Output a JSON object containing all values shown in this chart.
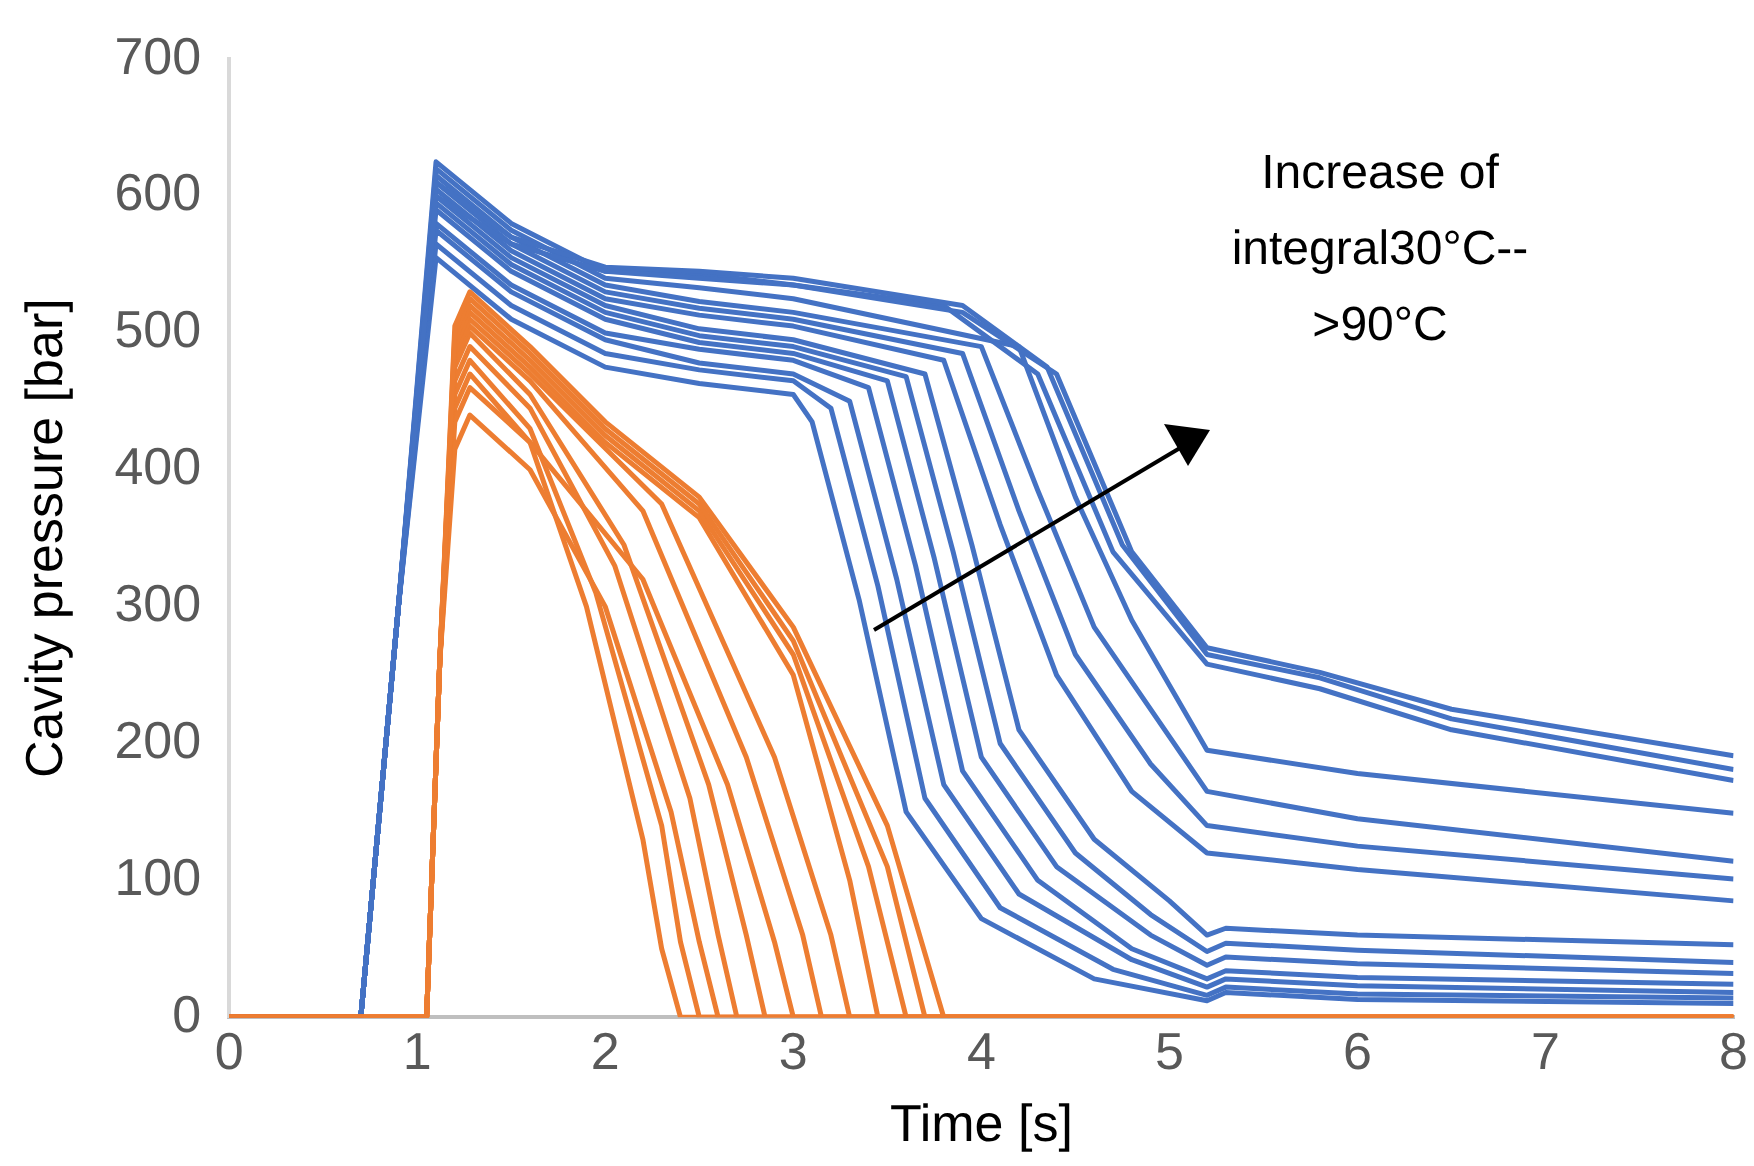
{
  "chart_data": {
    "type": "line",
    "xlabel": "Time [s]",
    "ylabel": "Cavity pressure [bar]",
    "xlim": [
      0,
      8
    ],
    "xticks": [
      0,
      1,
      2,
      3,
      4,
      5,
      6,
      7,
      8
    ],
    "ylim": [
      0,
      700
    ],
    "yticks": [
      0,
      100,
      200,
      300,
      400,
      500,
      600,
      700
    ],
    "grid": false,
    "legend": false,
    "marker": "none",
    "annotations": [
      "Increase of integral30°C-->90°C"
    ],
    "series": [
      {
        "color": "#4472c4",
        "x": [
          0,
          0.7,
          0.9,
          1.1,
          1.5,
          2,
          2.5,
          3,
          3.1,
          3.35,
          3.6,
          4,
          4.6,
          5.2,
          5.3,
          6,
          8
        ],
        "values": [
          0,
          0,
          300,
          555,
          510,
          475,
          463,
          455,
          435,
          305,
          150,
          72,
          28,
          12,
          18,
          13,
          10
        ]
      },
      {
        "color": "#4472c4",
        "x": [
          0,
          0.7,
          0.9,
          1.1,
          1.5,
          2,
          2.5,
          3,
          3.2,
          3.45,
          3.7,
          4.1,
          4.7,
          5.2,
          5.3,
          6,
          8
        ],
        "values": [
          0,
          0,
          300,
          565,
          520,
          485,
          473,
          465,
          445,
          315,
          160,
          80,
          35,
          16,
          22,
          17,
          14
        ]
      },
      {
        "color": "#4472c4",
        "x": [
          0,
          0.7,
          0.9,
          1.1,
          1.5,
          2,
          2.5,
          3,
          3.3,
          3.55,
          3.8,
          4.2,
          4.8,
          5.2,
          5.3,
          6,
          8
        ],
        "values": [
          0,
          0,
          300,
          575,
          530,
          495,
          478,
          470,
          450,
          320,
          170,
          90,
          42,
          22,
          28,
          23,
          18
        ]
      },
      {
        "color": "#4472c4",
        "x": [
          0,
          0.7,
          0.9,
          1.1,
          1.5,
          2,
          2.5,
          3,
          3.4,
          3.65,
          3.9,
          4.3,
          4.8,
          5.2,
          5.3,
          6,
          8
        ],
        "values": [
          0,
          0,
          300,
          580,
          535,
          500,
          488,
          480,
          460,
          330,
          180,
          100,
          50,
          28,
          34,
          29,
          24
        ]
      },
      {
        "color": "#4472c4",
        "x": [
          0,
          0.7,
          0.9,
          1.1,
          1.5,
          2,
          2.5,
          3,
          3.5,
          3.75,
          4,
          4.4,
          4.9,
          5.2,
          5.3,
          6,
          8
        ],
        "values": [
          0,
          0,
          300,
          590,
          545,
          510,
          493,
          485,
          465,
          335,
          190,
          110,
          60,
          38,
          44,
          39,
          32
        ]
      },
      {
        "color": "#4472c4",
        "x": [
          0,
          0.7,
          0.9,
          1.1,
          1.5,
          2,
          2.5,
          3,
          3.6,
          3.85,
          4.1,
          4.5,
          4.9,
          5.2,
          5.3,
          6,
          8
        ],
        "values": [
          0,
          0,
          300,
          595,
          550,
          515,
          498,
          490,
          468,
          340,
          200,
          120,
          75,
          48,
          54,
          49,
          40
        ]
      },
      {
        "color": "#4472c4",
        "x": [
          0,
          0.7,
          0.9,
          1.1,
          1.5,
          2,
          2.5,
          3,
          3.7,
          3.95,
          4.2,
          4.6,
          5,
          5.2,
          5.3,
          6,
          8
        ],
        "values": [
          0,
          0,
          300,
          600,
          555,
          520,
          503,
          495,
          470,
          345,
          210,
          130,
          85,
          60,
          65,
          60,
          53
        ]
      },
      {
        "color": "#4472c4",
        "x": [
          0,
          0.7,
          0.9,
          1.1,
          1.5,
          2,
          2.5,
          3,
          3.8,
          4.1,
          4.4,
          4.8,
          5.2,
          6,
          8
        ],
        "values": [
          0,
          0,
          300,
          605,
          560,
          525,
          513,
          505,
          480,
          360,
          250,
          165,
          120,
          108,
          85
        ]
      },
      {
        "color": "#4472c4",
        "x": [
          0,
          0.7,
          0.9,
          1.1,
          1.5,
          2,
          2.5,
          3,
          3.9,
          4.2,
          4.5,
          4.9,
          5.2,
          6,
          8
        ],
        "values": [
          0,
          0,
          300,
          610,
          565,
          530,
          518,
          510,
          485,
          370,
          265,
          185,
          140,
          125,
          101
        ]
      },
      {
        "color": "#4472c4",
        "x": [
          0,
          0.7,
          0.9,
          1.1,
          1.5,
          2,
          2.5,
          3,
          4,
          4.3,
          4.6,
          5,
          5.2,
          6,
          8
        ],
        "values": [
          0,
          0,
          300,
          615,
          570,
          535,
          523,
          515,
          490,
          385,
          285,
          205,
          165,
          145,
          114
        ]
      },
      {
        "color": "#4472c4",
        "x": [
          0,
          0.7,
          0.9,
          1.1,
          1.5,
          2,
          2.5,
          3,
          4.2,
          4.5,
          4.8,
          5.2,
          6,
          8
        ],
        "values": [
          0,
          0,
          300,
          620,
          575,
          540,
          533,
          525,
          490,
          380,
          290,
          195,
          178,
          149
        ]
      },
      {
        "color": "#4472c4",
        "x": [
          0,
          0.7,
          0.9,
          1.1,
          1.5,
          2,
          2.5,
          3,
          3.8,
          4.3,
          4.7,
          5.2,
          5.8,
          6.5,
          8
        ],
        "values": [
          0,
          0,
          300,
          625,
          580,
          545,
          543,
          535,
          520,
          470,
          340,
          258,
          240,
          210,
          173
        ]
      },
      {
        "color": "#4472c4",
        "x": [
          0,
          0.7,
          0.9,
          1.1,
          1.5,
          2,
          2.5,
          3,
          3.9,
          4.35,
          4.75,
          5.2,
          5.8,
          6.5,
          8
        ],
        "values": [
          0,
          0,
          300,
          610,
          570,
          548,
          545,
          540,
          520,
          475,
          345,
          265,
          248,
          218,
          181
        ]
      },
      {
        "color": "#4472c4",
        "x": [
          0,
          0.7,
          0.9,
          1.1,
          1.5,
          2,
          2.5,
          3,
          3.9,
          4.4,
          4.8,
          5.2,
          5.8,
          6.5,
          8
        ],
        "values": [
          0,
          0,
          300,
          600,
          565,
          545,
          540,
          535,
          515,
          470,
          340,
          270,
          252,
          225,
          191
        ]
      },
      {
        "color": "#ed7d31",
        "x": [
          0,
          1.05,
          1.12,
          1.2,
          1.28,
          1.6,
          1.9,
          2.2,
          2.3,
          2.4,
          8
        ],
        "values": [
          0,
          0,
          260,
          445,
          470,
          420,
          300,
          130,
          50,
          0,
          0
        ]
      },
      {
        "color": "#ed7d31",
        "x": [
          0,
          1.05,
          1.12,
          1.2,
          1.28,
          1.6,
          1.95,
          2.3,
          2.4,
          2.5,
          8
        ],
        "values": [
          0,
          0,
          260,
          455,
          480,
          430,
          310,
          140,
          55,
          0,
          0
        ]
      },
      {
        "color": "#ed7d31",
        "x": [
          0,
          1.05,
          1.12,
          1.2,
          1.28,
          1.6,
          2,
          2.35,
          2.5,
          2.6,
          8
        ],
        "values": [
          0,
          0,
          260,
          415,
          440,
          400,
          300,
          150,
          55,
          0,
          0
        ]
      },
      {
        "color": "#ed7d31",
        "x": [
          0,
          1.05,
          1.12,
          1.2,
          1.28,
          1.6,
          2.05,
          2.45,
          2.6,
          2.7,
          8
        ],
        "values": [
          0,
          0,
          260,
          465,
          490,
          445,
          330,
          160,
          60,
          0,
          0
        ]
      },
      {
        "color": "#ed7d31",
        "x": [
          0,
          1.05,
          1.12,
          1.2,
          1.28,
          1.6,
          2.1,
          2.55,
          2.75,
          2.85,
          8
        ],
        "values": [
          0,
          0,
          260,
          475,
          500,
          455,
          345,
          170,
          60,
          0,
          0
        ]
      },
      {
        "color": "#ed7d31",
        "x": [
          0,
          1.05,
          1.12,
          1.2,
          1.28,
          1.6,
          2.2,
          2.65,
          2.9,
          3,
          8
        ],
        "values": [
          0,
          0,
          260,
          435,
          460,
          420,
          320,
          170,
          55,
          0,
          0
        ]
      },
      {
        "color": "#ed7d31",
        "x": [
          0,
          1.05,
          1.12,
          1.2,
          1.28,
          1.6,
          2.2,
          2.75,
          3.05,
          3.15,
          8
        ],
        "values": [
          0,
          0,
          260,
          480,
          505,
          465,
          370,
          190,
          60,
          0,
          0
        ]
      },
      {
        "color": "#ed7d31",
        "x": [
          0,
          1.05,
          1.12,
          1.2,
          1.28,
          1.6,
          2.3,
          2.9,
          3.2,
          3.3,
          8
        ],
        "values": [
          0,
          0,
          260,
          485,
          510,
          470,
          375,
          190,
          60,
          0,
          0
        ]
      },
      {
        "color": "#ed7d31",
        "x": [
          0,
          1.05,
          1.12,
          1.2,
          1.28,
          1.6,
          2,
          2.5,
          3,
          3.3,
          3.45,
          8
        ],
        "values": [
          0,
          0,
          260,
          490,
          515,
          475,
          420,
          365,
          250,
          100,
          0,
          0
        ]
      },
      {
        "color": "#ed7d31",
        "x": [
          0,
          1.05,
          1.12,
          1.2,
          1.28,
          1.6,
          2,
          2.5,
          3,
          3.4,
          3.6,
          8
        ],
        "values": [
          0,
          0,
          260,
          495,
          520,
          480,
          425,
          370,
          265,
          110,
          0,
          0
        ]
      },
      {
        "color": "#ed7d31",
        "x": [
          0,
          1.05,
          1.12,
          1.2,
          1.28,
          1.6,
          2,
          2.5,
          3,
          3.5,
          3.7,
          8
        ],
        "values": [
          0,
          0,
          260,
          500,
          525,
          485,
          430,
          375,
          275,
          110,
          0,
          0
        ]
      },
      {
        "color": "#ed7d31",
        "x": [
          0,
          1.05,
          1.12,
          1.2,
          1.28,
          1.6,
          2,
          2.5,
          3,
          3.5,
          3.8,
          8
        ],
        "values": [
          0,
          0,
          260,
          505,
          530,
          490,
          435,
          380,
          285,
          140,
          0,
          0
        ]
      }
    ]
  }
}
